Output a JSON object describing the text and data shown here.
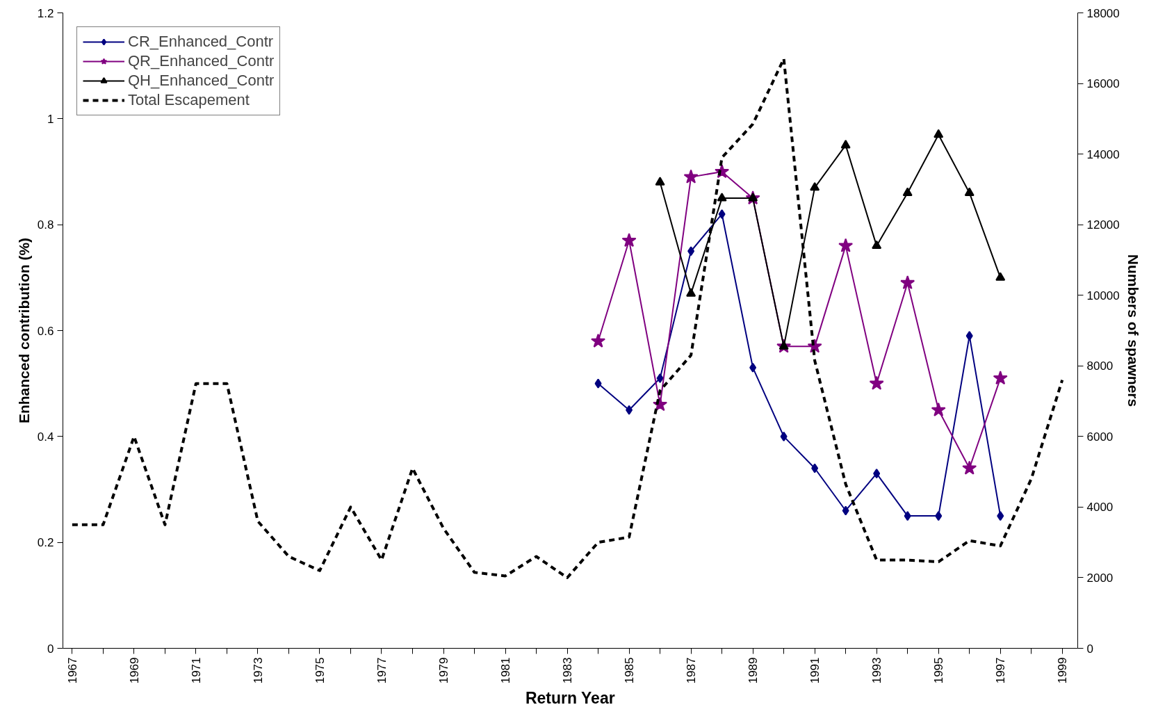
{
  "chart_data": {
    "type": "line",
    "xlabel": "Return Year",
    "ylabel": "Enhanced contribution (%)",
    "y2label": "Numbers of spawners",
    "xlim": [
      1966.7,
      1999.5
    ],
    "xticks": [
      1967,
      {
        "value": 1968,
        "label": null
      },
      1969,
      {
        "value": 1970,
        "label": null
      },
      1971,
      {
        "value": 1972,
        "label": null
      },
      1973,
      {
        "value": 1974,
        "label": null
      },
      1975,
      {
        "value": 1976,
        "label": null
      },
      1977,
      {
        "value": 1978,
        "label": null
      },
      1979,
      {
        "value": 1980,
        "label": null
      },
      1981,
      {
        "value": 1982,
        "label": null
      },
      1983,
      {
        "value": 1984,
        "label": null
      },
      1985,
      {
        "value": 1986,
        "label": null
      },
      1987,
      {
        "value": 1988,
        "label": null
      },
      1989,
      {
        "value": 1990,
        "label": null
      },
      1991,
      {
        "value": 1992,
        "label": null
      },
      1993,
      {
        "value": 1994,
        "label": null
      },
      1995,
      {
        "value": 1996,
        "label": null
      },
      1997,
      {
        "value": 1998,
        "label": null
      },
      1999
    ],
    "ylim": [
      0,
      1.2
    ],
    "yticks": [
      0,
      0.2,
      0.4,
      0.6,
      0.8,
      1,
      1.2
    ],
    "y2lim": [
      0,
      18000
    ],
    "y2ticks": [
      0,
      2000,
      4000,
      6000,
      8000,
      10000,
      12000,
      14000,
      16000,
      18000
    ],
    "grid": false,
    "legend": "top left",
    "series": [
      {
        "name": "CR_Enhanced_Contr",
        "color": "#000080",
        "marker": "diamond",
        "line_style": "solid",
        "x": [
          1984,
          1985,
          1986,
          1987,
          1988,
          1989,
          1990,
          1991,
          1992,
          1993,
          1994,
          1995,
          1996,
          1997
        ],
        "values": [
          0.5,
          0.45,
          0.51,
          0.75,
          0.82,
          0.53,
          0.4,
          0.34,
          0.26,
          0.33,
          0.25,
          0.25,
          0.59,
          0.25
        ]
      },
      {
        "name": "QR_Enhanced_Contr",
        "color": "#800080",
        "marker": "star",
        "line_style": "solid",
        "x": [
          1984,
          1985,
          1986,
          1987,
          1988,
          1989,
          1990,
          1991,
          1992,
          1993,
          1994,
          1995,
          1996,
          1997
        ],
        "values": [
          0.58,
          0.77,
          0.46,
          0.89,
          0.9,
          0.85,
          0.57,
          0.57,
          0.76,
          0.5,
          0.69,
          0.45,
          0.34,
          0.51
        ]
      },
      {
        "name": "QH_Enhanced_Contr",
        "color": "#000000",
        "marker": "triangle",
        "line_style": "solid",
        "x": [
          1986,
          1987,
          1988,
          1989,
          1990,
          1991,
          1992,
          1993,
          1994,
          1995,
          1996,
          1997
        ],
        "values": [
          0.88,
          0.67,
          0.85,
          0.85,
          0.57,
          0.87,
          0.95,
          0.76,
          0.86,
          0.97,
          0.86,
          0.7
        ]
      },
      {
        "name": "Total Escapement",
        "color": "#000000",
        "marker": "none",
        "line_style": "dashed",
        "axis": "y2",
        "x": [
          1967,
          1968,
          1969,
          1970,
          1971,
          1972,
          1973,
          1974,
          1975,
          1976,
          1977,
          1978,
          1979,
          1980,
          1981,
          1982,
          1983,
          1984,
          1985,
          1986,
          1987,
          1988,
          1989,
          1990,
          1991,
          1992,
          1993,
          1994,
          1995,
          1996,
          1997,
          1998,
          1999
        ],
        "values": [
          3500,
          3500,
          6000,
          3500,
          7500,
          7500,
          3600,
          2600,
          2200,
          4000,
          2500,
          5100,
          3400,
          2150,
          2050,
          2600,
          2000,
          3000,
          3150,
          7300,
          8300,
          13900,
          14850,
          16700,
          8150,
          4650,
          2500,
          2500,
          2450,
          3050,
          2900,
          4800,
          7600
        ]
      }
    ]
  }
}
